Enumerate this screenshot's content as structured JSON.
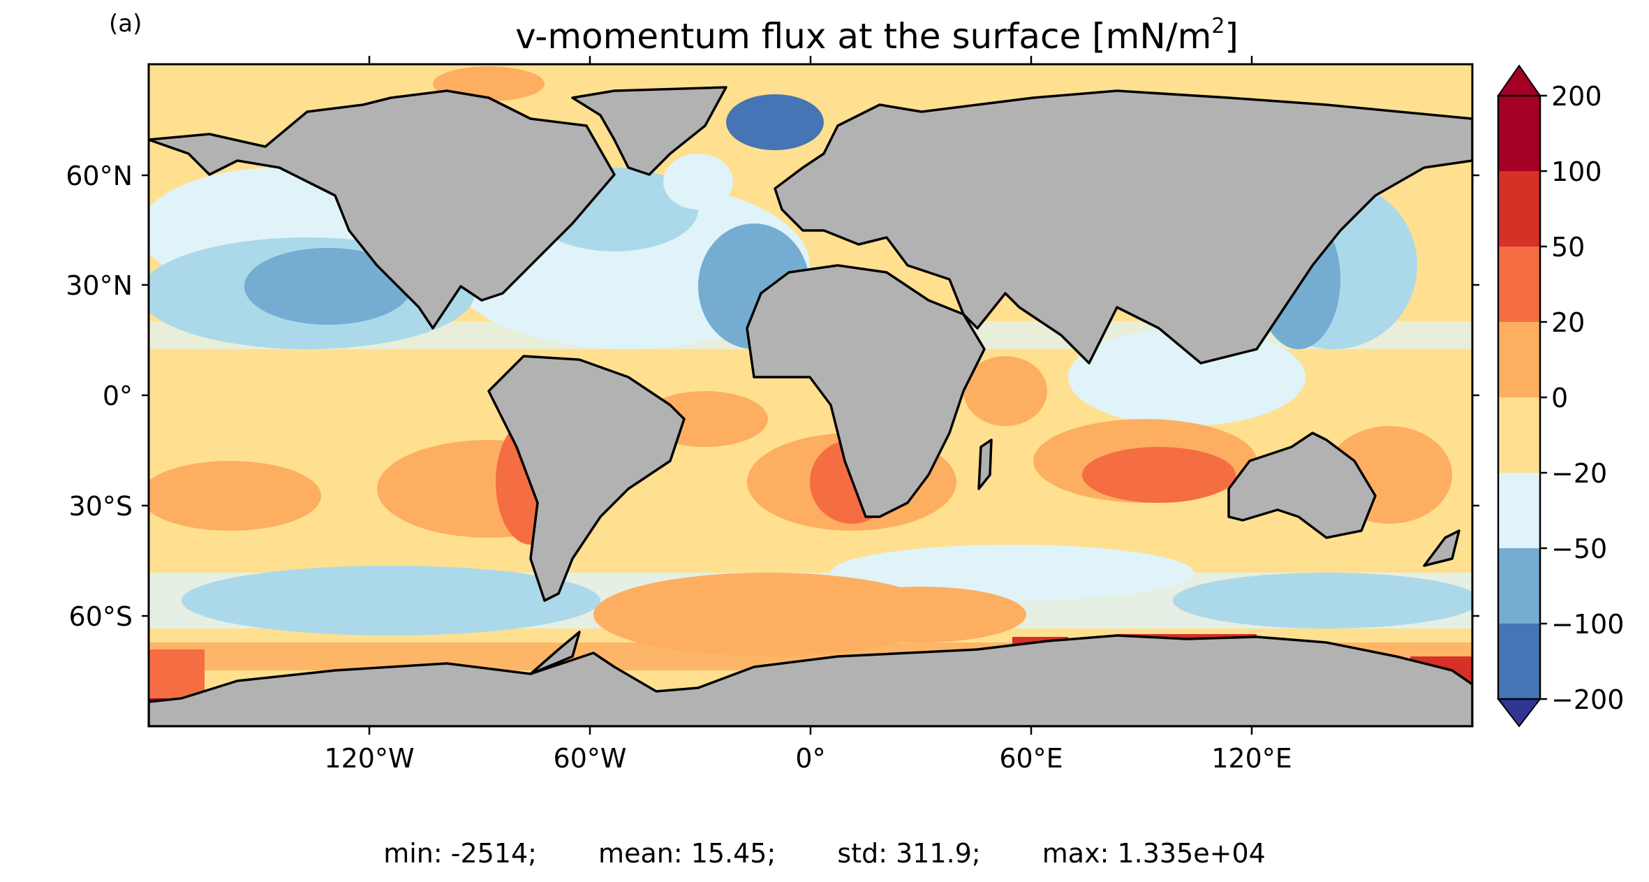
{
  "panel_label": "(a)",
  "title": {
    "text": "v-momentum flux at the surface [mN/m",
    "sup": "2",
    "end": "]"
  },
  "map": {
    "projection": "PlateCarree",
    "lon_range": [
      -180,
      180
    ],
    "lat_range": [
      -90,
      90
    ],
    "land_color": "#b2b2b2",
    "coastline_color": "#000000",
    "y_ticks": [
      "60°N",
      "30°N",
      "0°",
      "30°S",
      "60°S"
    ],
    "x_ticks": [
      "120°W",
      "60°W",
      "0°",
      "60°E",
      "120°E"
    ]
  },
  "colorbar": {
    "levels": [
      "200",
      "100",
      "50",
      "20",
      "0",
      "−20",
      "−50",
      "−100",
      "−200"
    ],
    "colors_top_to_bottom": [
      "#a50026",
      "#d73027",
      "#f46d43",
      "#fdae61",
      "#fee090",
      "#e0f3f8",
      "#abd9e9",
      "#74add1",
      "#4575b4",
      "#313695"
    ],
    "extend": "both"
  },
  "stats": {
    "min": "min: -2514;",
    "mean": "mean: 15.45;",
    "std": "std: 311.9;",
    "max": "max: 1.335e+04"
  }
}
